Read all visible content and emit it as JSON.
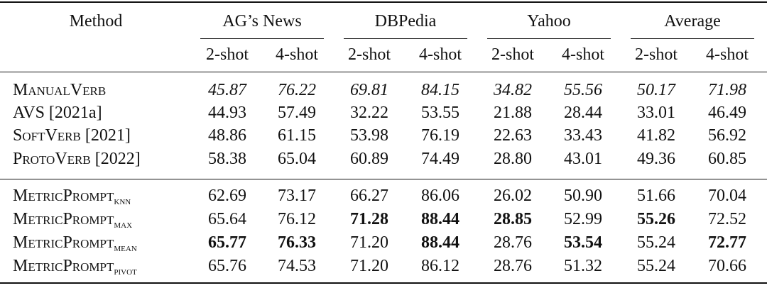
{
  "header": {
    "method": "Method",
    "groups": [
      "AG’s News",
      "DBPedia",
      "Yahoo",
      "Average"
    ],
    "shots": [
      "2-shot",
      "4-shot",
      "2-shot",
      "4-shot",
      "2-shot",
      "4-shot",
      "2-shot",
      "4-shot"
    ]
  },
  "baselines": [
    {
      "name": "ManualVerb",
      "cite": "",
      "values": [
        "45.87",
        "76.22",
        "69.81",
        "84.15",
        "34.82",
        "55.56",
        "50.17",
        "71.98"
      ],
      "style": [
        "i",
        "i",
        "i",
        "i",
        "i",
        "i",
        "i",
        "i"
      ]
    },
    {
      "name": "AVS",
      "cite": " [2021a]",
      "values": [
        "44.93",
        "57.49",
        "32.22",
        "53.55",
        "21.88",
        "28.44",
        "33.01",
        "46.49"
      ],
      "style": [
        "",
        "",
        "",
        "",
        "",
        "",
        "",
        ""
      ]
    },
    {
      "name": "SoftVerb",
      "cite": " [2021]",
      "values": [
        "48.86",
        "61.15",
        "53.98",
        "76.19",
        "22.63",
        "33.43",
        "41.82",
        "56.92"
      ],
      "style": [
        "",
        "",
        "",
        "",
        "",
        "",
        "",
        ""
      ]
    },
    {
      "name": "ProtoVerb",
      "cite": " [2022]",
      "values": [
        "58.38",
        "65.04",
        "60.89",
        "74.49",
        "28.80",
        "43.01",
        "49.36",
        "60.85"
      ],
      "style": [
        "",
        "",
        "",
        "",
        "",
        "",
        "",
        ""
      ]
    }
  ],
  "ours": [
    {
      "name": "MetricPrompt",
      "sub": "knn",
      "values": [
        "62.69",
        "73.17",
        "66.27",
        "86.06",
        "26.02",
        "50.90",
        "51.66",
        "70.04"
      ],
      "style": [
        "",
        "",
        "",
        "",
        "",
        "",
        "",
        ""
      ]
    },
    {
      "name": "MetricPrompt",
      "sub": "max",
      "values": [
        "65.64",
        "76.12",
        "71.28",
        "88.44",
        "28.85",
        "52.99",
        "55.26",
        "72.52"
      ],
      "style": [
        "",
        "",
        "b",
        "b",
        "b",
        "",
        "b",
        ""
      ]
    },
    {
      "name": "MetricPrompt",
      "sub": "mean",
      "values": [
        "65.77",
        "76.33",
        "71.20",
        "88.44",
        "28.76",
        "53.54",
        "55.24",
        "72.77"
      ],
      "style": [
        "b",
        "b",
        "",
        "b",
        "",
        "b",
        "",
        "b"
      ]
    },
    {
      "name": "MetricPrompt",
      "sub": "pivot",
      "values": [
        "65.76",
        "74.53",
        "71.20",
        "86.12",
        "28.76",
        "51.32",
        "55.24",
        "70.66"
      ],
      "style": [
        "",
        "",
        "",
        "",
        "",
        "",
        "",
        ""
      ]
    }
  ]
}
